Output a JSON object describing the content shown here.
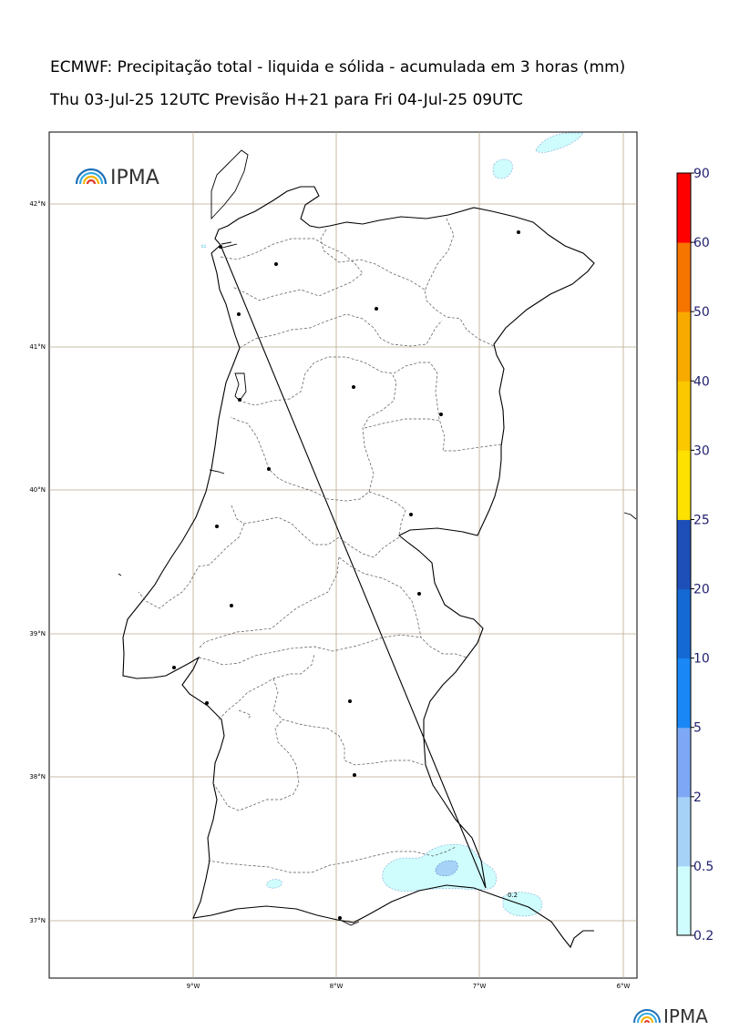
{
  "header": {
    "title": "ECMWF: Precipitação total - liquida e sólida - acumulada em 3 horas (mm)",
    "subtitle": "Thu 03-Jul-25 12UTC Previsão H+21 para Fri 04-Jul-25 09UTC"
  },
  "map": {
    "lat_labels": [
      "42°N",
      "41°N",
      "40°N",
      "39°N",
      "38°N",
      "37°N"
    ],
    "lon_labels": [
      "9°W",
      "8°W",
      "7°W",
      "6°W"
    ],
    "contour_label": "0.2",
    "logo_text": "IPMA",
    "footer_logo_text": "IPMA"
  },
  "colorbar": {
    "levels": [
      "0.2",
      "0.5",
      "2",
      "5",
      "10",
      "20",
      "25",
      "30",
      "40",
      "50",
      "60",
      "90"
    ],
    "colors": [
      "#cffcfc",
      "#a7d2f7",
      "#7ea8f6",
      "#1a87f6",
      "#1569d4",
      "#1e4fb8",
      "#fffb00",
      "#fde100",
      "#fbc800",
      "#f9aa00",
      "#f67400",
      "#ff0000",
      "#ff28a0"
    ]
  }
}
